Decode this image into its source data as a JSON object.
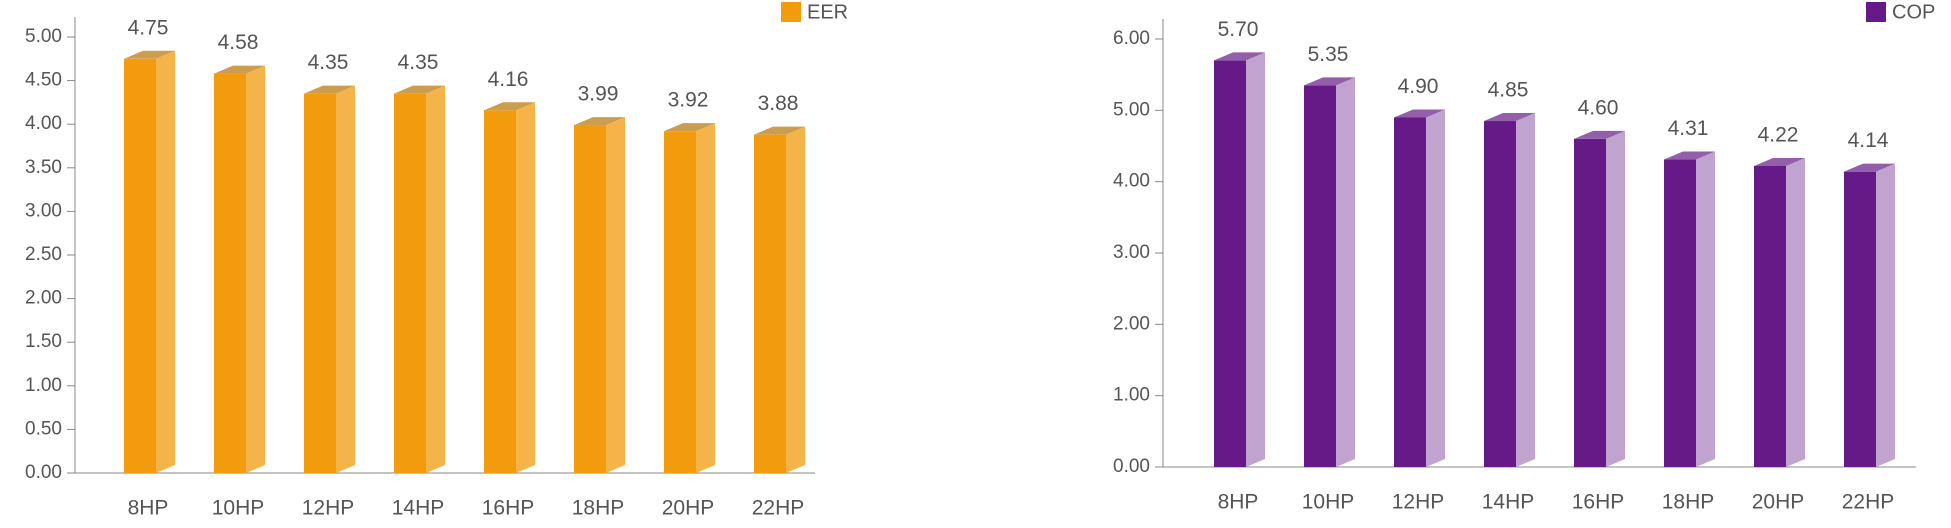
{
  "chart_data": [
    {
      "type": "bar",
      "categories": [
        "8HP",
        "10HP",
        "12HP",
        "14HP",
        "16HP",
        "18HP",
        "20HP",
        "22HP"
      ],
      "series": [
        {
          "name": "EER",
          "color": "#f29b0c",
          "values": [
            4.75,
            4.58,
            4.35,
            4.35,
            4.16,
            3.99,
            3.92,
            3.88
          ],
          "value_labels": [
            "4.75",
            "4.58",
            "4.35",
            "4.35",
            "4.16",
            "3.99",
            "3.92",
            "3.88"
          ]
        }
      ],
      "ylim": [
        0,
        5
      ],
      "yticks": [
        {
          "value": 0,
          "label": "0.00"
        },
        {
          "value": 0.5,
          "label": "0.50"
        },
        {
          "value": 1,
          "label": "1.00"
        },
        {
          "value": 1.5,
          "label": "1.50"
        },
        {
          "value": 2,
          "label": "2.00"
        },
        {
          "value": 2.5,
          "label": "2.50"
        },
        {
          "value": 3,
          "label": "3.00"
        },
        {
          "value": 3.5,
          "label": "3.50"
        },
        {
          "value": 4,
          "label": "4.00"
        },
        {
          "value": 4.5,
          "label": "4.50"
        },
        {
          "value": 5,
          "label": "5.00"
        }
      ],
      "legend": "top-right"
    },
    {
      "type": "bar",
      "categories": [
        "8HP",
        "10HP",
        "12HP",
        "14HP",
        "16HP",
        "18HP",
        "20HP",
        "22HP"
      ],
      "series": [
        {
          "name": "COP",
          "color": "#651a87",
          "values": [
            5.7,
            5.35,
            4.9,
            4.85,
            4.6,
            4.31,
            4.22,
            4.14
          ],
          "value_labels": [
            "5.70",
            "5.35",
            "4.90",
            "4.85",
            "4.60",
            "4.31",
            "4.22",
            "4.14"
          ]
        }
      ],
      "ylim": [
        0,
        6
      ],
      "yticks": [
        {
          "value": 0,
          "label": "0.00"
        },
        {
          "value": 1,
          "label": "1.00"
        },
        {
          "value": 2,
          "label": "2.00"
        },
        {
          "value": 3,
          "label": "3.00"
        },
        {
          "value": 4,
          "label": "4.00"
        },
        {
          "value": 5,
          "label": "5.00"
        },
        {
          "value": 6,
          "label": "6.00"
        }
      ],
      "legend": "top-right"
    }
  ]
}
